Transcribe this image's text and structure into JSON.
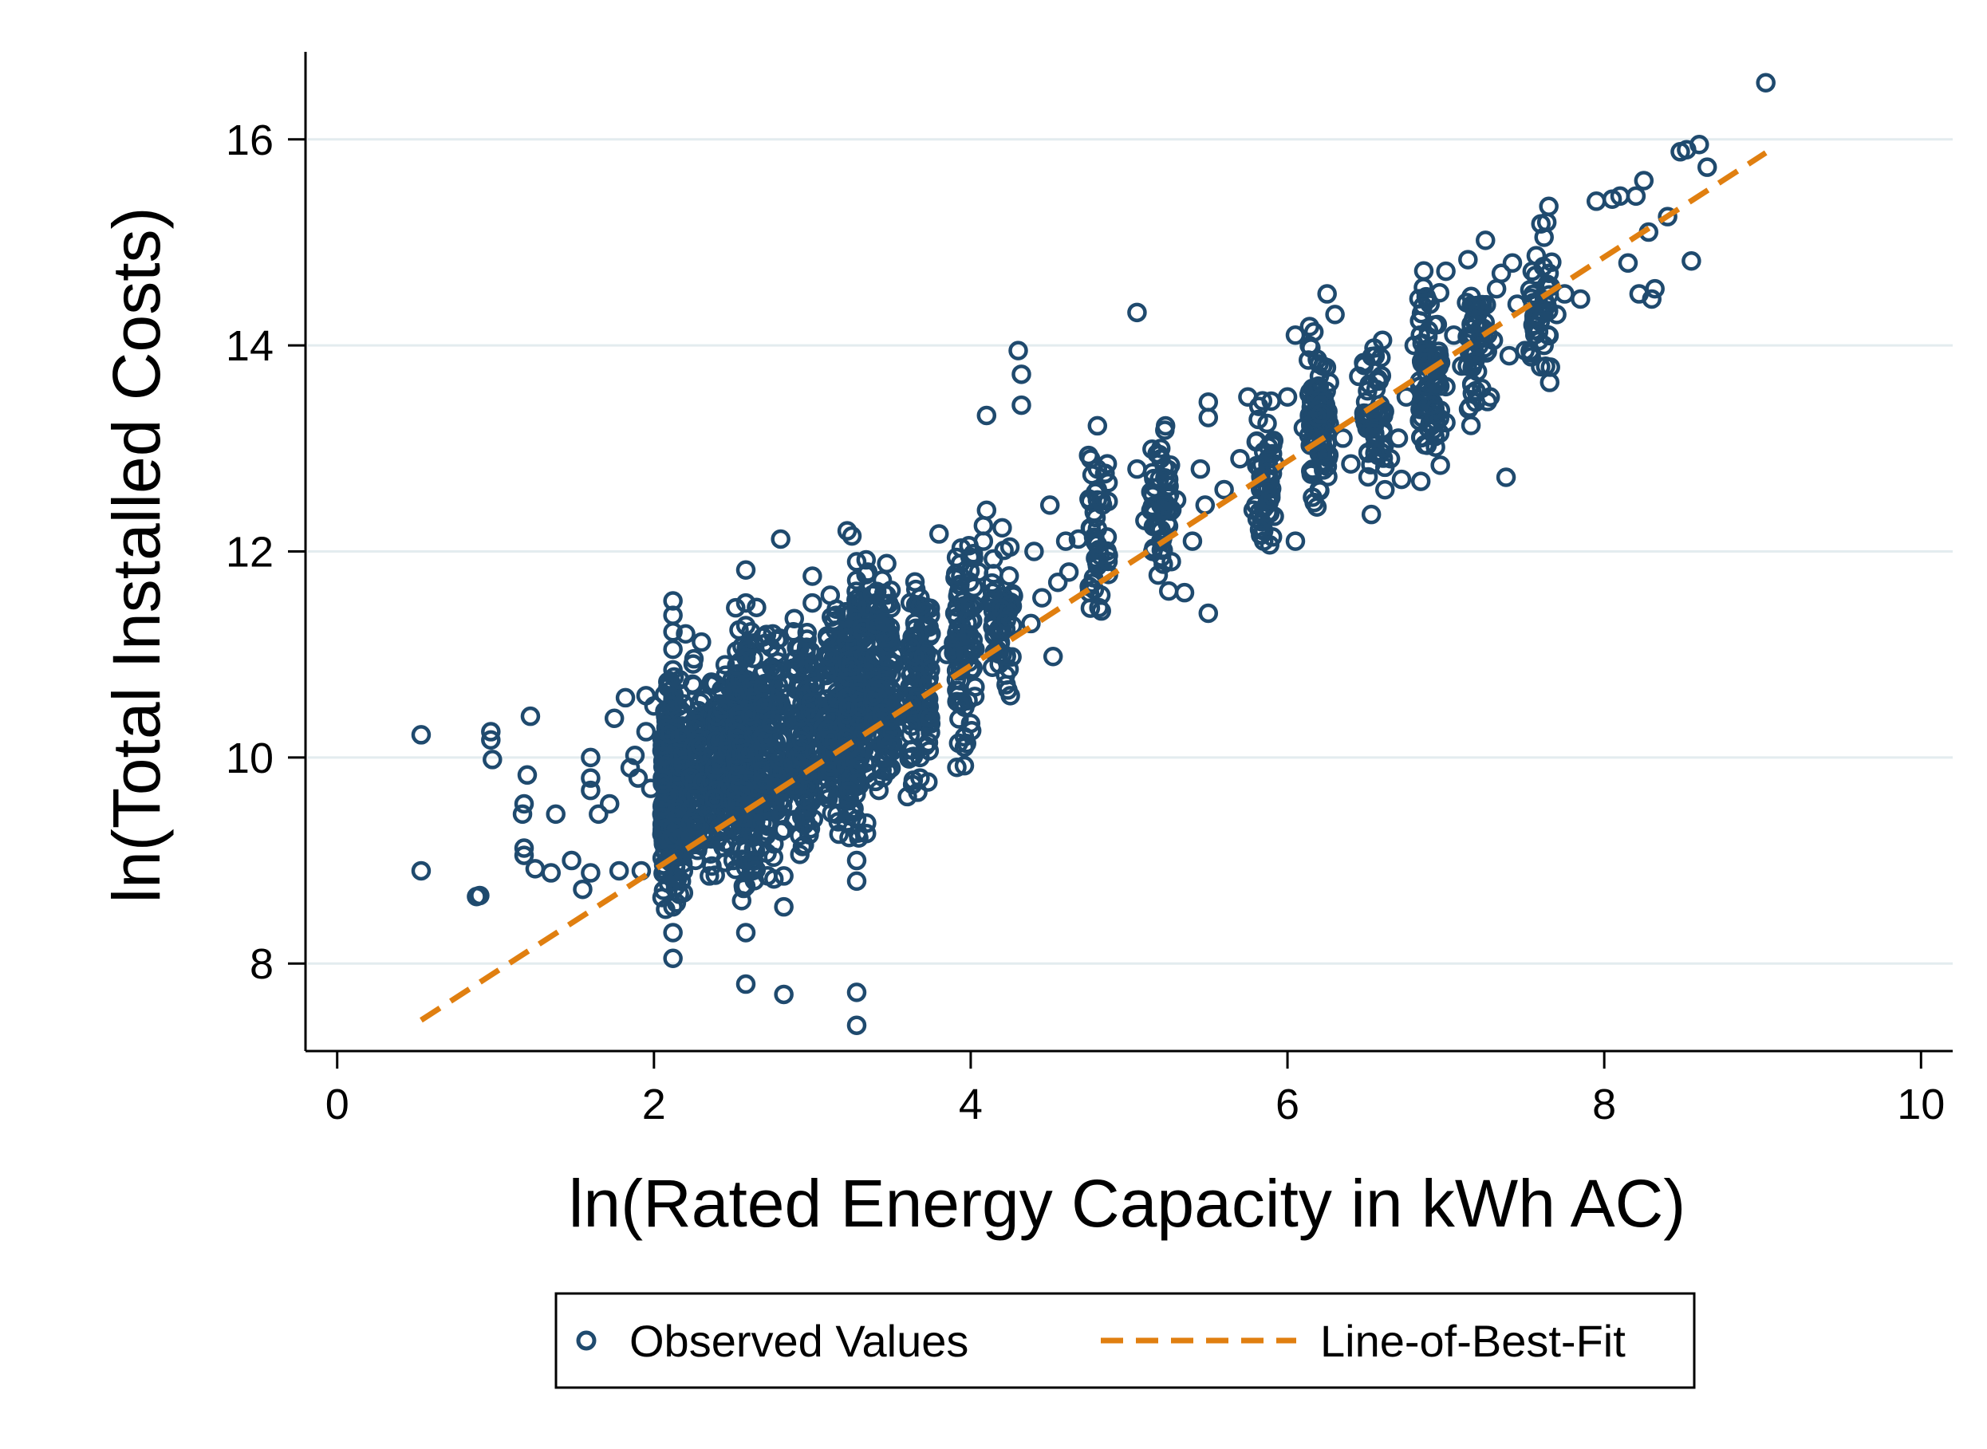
{
  "chart_data": {
    "type": "scatter",
    "title": "",
    "xlabel": "ln(Rated Energy Capacity in kWh AC)",
    "ylabel": "ln(Total Installed Costs)",
    "xlim": [
      -0.2,
      10.2
    ],
    "ylim": [
      7.15,
      16.85
    ],
    "xticks": [
      "0",
      "2",
      "4",
      "6",
      "8",
      "10"
    ],
    "yticks": [
      "8",
      "10",
      "12",
      "14",
      "16"
    ],
    "grid": "horizontal",
    "legend_position": "bottom-center",
    "colors": {
      "points": "#1f4a6e",
      "fit_line": "#e07f10",
      "grid": "#e3ecef",
      "axis": "#000000"
    },
    "series": [
      {
        "name": "Observed Values",
        "kind": "scatter",
        "marker": "hollow-circle",
        "points": [
          [
            0.53,
            10.22
          ],
          [
            0.53,
            8.9
          ],
          [
            0.88,
            8.65
          ],
          [
            0.9,
            8.66
          ],
          [
            0.97,
            10.25
          ],
          [
            0.97,
            10.17
          ],
          [
            0.98,
            9.98
          ],
          [
            1.22,
            10.4
          ],
          [
            1.2,
            9.83
          ],
          [
            1.18,
            9.55
          ],
          [
            1.17,
            9.45
          ],
          [
            1.18,
            9.12
          ],
          [
            1.18,
            9.05
          ],
          [
            1.25,
            8.92
          ],
          [
            1.35,
            8.88
          ],
          [
            1.38,
            9.45
          ],
          [
            1.48,
            9.0
          ],
          [
            1.55,
            8.72
          ],
          [
            1.6,
            8.88
          ],
          [
            1.6,
            9.68
          ],
          [
            1.6,
            9.8
          ],
          [
            1.6,
            10.0
          ],
          [
            1.65,
            9.45
          ],
          [
            1.72,
            9.55
          ],
          [
            1.75,
            10.38
          ],
          [
            1.78,
            8.9
          ],
          [
            1.82,
            10.58
          ],
          [
            1.85,
            9.9
          ],
          [
            1.88,
            10.02
          ],
          [
            1.9,
            9.8
          ],
          [
            1.95,
            10.6
          ],
          [
            1.95,
            10.25
          ],
          [
            1.92,
            8.9
          ],
          [
            1.98,
            9.7
          ],
          [
            2.05,
            9.45
          ],
          [
            2.0,
            10.5
          ],
          [
            2.12,
            11.52
          ],
          [
            2.12,
            11.38
          ],
          [
            2.12,
            11.22
          ],
          [
            2.12,
            11.05
          ],
          [
            2.12,
            10.85
          ],
          [
            2.12,
            10.6
          ],
          [
            2.12,
            10.3
          ],
          [
            2.12,
            10.0
          ],
          [
            2.12,
            9.7
          ],
          [
            2.12,
            9.4
          ],
          [
            2.12,
            9.1
          ],
          [
            2.12,
            8.82
          ],
          [
            2.12,
            8.55
          ],
          [
            2.12,
            8.3
          ],
          [
            2.12,
            8.05
          ],
          [
            2.2,
            11.2
          ],
          [
            2.2,
            9.5
          ],
          [
            2.25,
            10.7
          ],
          [
            2.3,
            9.9
          ],
          [
            2.3,
            11.12
          ],
          [
            2.35,
            10.4
          ],
          [
            2.35,
            8.85
          ],
          [
            2.4,
            10.2
          ],
          [
            2.4,
            9.2
          ],
          [
            2.45,
            10.9
          ],
          [
            2.5,
            9.8
          ],
          [
            2.5,
            10.6
          ],
          [
            2.5,
            9.0
          ],
          [
            2.58,
            11.82
          ],
          [
            2.58,
            11.5
          ],
          [
            2.58,
            11.28
          ],
          [
            2.58,
            11.0
          ],
          [
            2.58,
            10.6
          ],
          [
            2.58,
            10.2
          ],
          [
            2.58,
            9.8
          ],
          [
            2.58,
            9.4
          ],
          [
            2.58,
            9.0
          ],
          [
            2.58,
            8.75
          ],
          [
            2.58,
            8.3
          ],
          [
            2.58,
            7.8
          ],
          [
            2.65,
            10.1
          ],
          [
            2.7,
            9.6
          ],
          [
            2.75,
            10.7
          ],
          [
            2.75,
            11.2
          ],
          [
            2.8,
            12.12
          ],
          [
            2.82,
            9.3
          ],
          [
            2.82,
            8.85
          ],
          [
            2.82,
            8.55
          ],
          [
            2.82,
            7.7
          ],
          [
            2.88,
            11.22
          ],
          [
            2.9,
            10.4
          ],
          [
            2.95,
            9.9
          ],
          [
            2.98,
            9.25
          ],
          [
            3.0,
            11.76
          ],
          [
            3.0,
            11.5
          ],
          [
            3.05,
            10.5
          ],
          [
            3.1,
            9.6
          ],
          [
            3.15,
            11.38
          ],
          [
            3.15,
            10.9
          ],
          [
            3.2,
            10.1
          ],
          [
            3.22,
            12.2
          ],
          [
            3.25,
            12.15
          ],
          [
            3.28,
            11.9
          ],
          [
            3.28,
            11.72
          ],
          [
            3.28,
            11.4
          ],
          [
            3.28,
            11.0
          ],
          [
            3.28,
            10.6
          ],
          [
            3.28,
            10.2
          ],
          [
            3.28,
            9.8
          ],
          [
            3.28,
            9.4
          ],
          [
            3.28,
            9.0
          ],
          [
            3.28,
            8.8
          ],
          [
            3.28,
            7.72
          ],
          [
            3.28,
            7.4
          ],
          [
            3.35,
            11.8
          ],
          [
            3.4,
            11.5
          ],
          [
            3.45,
            11.2
          ],
          [
            3.5,
            10.8
          ],
          [
            3.55,
            10.4
          ],
          [
            3.6,
            9.62
          ],
          [
            3.62,
            10.0
          ],
          [
            3.68,
            11.55
          ],
          [
            3.68,
            11.2
          ],
          [
            3.68,
            10.8
          ],
          [
            3.68,
            10.4
          ],
          [
            3.68,
            10.0
          ],
          [
            3.68,
            9.8
          ],
          [
            3.75,
            11.2
          ],
          [
            3.8,
            12.17
          ],
          [
            3.85,
            11.0
          ],
          [
            3.9,
            11.4
          ],
          [
            3.92,
            10.6
          ],
          [
            3.96,
            10.2
          ],
          [
            3.96,
            9.92
          ],
          [
            3.96,
            10.1
          ],
          [
            4.02,
            11.65
          ],
          [
            4.05,
            11.8
          ],
          [
            4.08,
            12.1
          ],
          [
            4.08,
            12.25
          ],
          [
            4.1,
            12.4
          ],
          [
            4.1,
            13.32
          ],
          [
            4.12,
            11.5
          ],
          [
            4.15,
            11.2
          ],
          [
            4.2,
            11.0
          ],
          [
            4.22,
            10.8
          ],
          [
            4.25,
            10.6
          ],
          [
            4.3,
            13.95
          ],
          [
            4.32,
            13.72
          ],
          [
            4.32,
            13.42
          ],
          [
            4.38,
            11.3
          ],
          [
            4.4,
            12.0
          ],
          [
            4.45,
            11.55
          ],
          [
            4.5,
            12.45
          ],
          [
            4.52,
            10.98
          ],
          [
            4.55,
            11.7
          ],
          [
            4.6,
            12.1
          ],
          [
            4.62,
            11.8
          ],
          [
            4.68,
            12.12
          ],
          [
            4.75,
            11.6
          ],
          [
            4.78,
            12.38
          ],
          [
            4.8,
            12.6
          ],
          [
            4.8,
            12.5
          ],
          [
            4.8,
            12.22
          ],
          [
            4.8,
            13.22
          ],
          [
            4.8,
            12.8
          ],
          [
            4.8,
            11.92
          ],
          [
            5.05,
            14.32
          ],
          [
            5.05,
            12.8
          ],
          [
            5.1,
            12.3
          ],
          [
            5.15,
            12.0
          ],
          [
            5.2,
            13.0
          ],
          [
            5.2,
            12.9
          ],
          [
            5.2,
            12.45
          ],
          [
            5.2,
            12.2
          ],
          [
            5.2,
            12.1
          ],
          [
            5.25,
            12.7
          ],
          [
            5.3,
            12.5
          ],
          [
            5.35,
            11.6
          ],
          [
            5.4,
            12.1
          ],
          [
            5.45,
            12.8
          ],
          [
            5.48,
            12.45
          ],
          [
            5.5,
            11.4
          ],
          [
            5.5,
            13.3
          ],
          [
            5.5,
            13.45
          ],
          [
            5.6,
            12.6
          ],
          [
            5.7,
            12.9
          ],
          [
            5.75,
            13.5
          ],
          [
            5.8,
            12.45
          ],
          [
            5.85,
            12.2
          ],
          [
            5.85,
            12.1
          ],
          [
            5.85,
            12.6
          ],
          [
            5.9,
            13.05
          ],
          [
            5.92,
            12.85
          ],
          [
            6.0,
            13.5
          ],
          [
            6.05,
            12.1
          ],
          [
            6.05,
            14.1
          ],
          [
            6.1,
            13.2
          ],
          [
            6.15,
            13.4
          ],
          [
            6.15,
            12.75
          ],
          [
            6.2,
            13.82
          ],
          [
            6.2,
            13.6
          ],
          [
            6.2,
            13.2
          ],
          [
            6.2,
            12.95
          ],
          [
            6.2,
            12.6
          ],
          [
            6.25,
            14.5
          ],
          [
            6.3,
            14.3
          ],
          [
            6.35,
            13.1
          ],
          [
            6.4,
            12.85
          ],
          [
            6.45,
            13.7
          ],
          [
            6.5,
            13.3
          ],
          [
            6.6,
            14.05
          ],
          [
            6.65,
            12.9
          ],
          [
            6.7,
            13.1
          ],
          [
            6.72,
            12.7
          ],
          [
            6.75,
            13.5
          ],
          [
            6.8,
            14.0
          ],
          [
            6.85,
            13.3
          ],
          [
            6.9,
            14.4
          ],
          [
            6.95,
            13.8
          ],
          [
            7.0,
            13.6
          ],
          [
            7.0,
            14.72
          ],
          [
            7.0,
            13.25
          ],
          [
            7.05,
            14.1
          ],
          [
            7.1,
            13.8
          ],
          [
            7.15,
            13.4
          ],
          [
            7.2,
            14.3
          ],
          [
            7.25,
            15.02
          ],
          [
            7.28,
            13.5
          ],
          [
            7.3,
            14.05
          ],
          [
            7.32,
            14.55
          ],
          [
            7.35,
            14.7
          ],
          [
            7.38,
            12.72
          ],
          [
            7.4,
            13.9
          ],
          [
            7.42,
            14.8
          ],
          [
            7.45,
            14.4
          ],
          [
            7.5,
            13.95
          ],
          [
            7.55,
            14.2
          ],
          [
            7.6,
            15.18
          ],
          [
            7.62,
            15.05
          ],
          [
            7.62,
            14.0
          ],
          [
            7.65,
            15.35
          ],
          [
            7.7,
            14.3
          ],
          [
            7.75,
            14.5
          ],
          [
            7.85,
            14.45
          ],
          [
            7.95,
            15.4
          ],
          [
            8.05,
            15.42
          ],
          [
            8.1,
            15.45
          ],
          [
            8.15,
            14.8
          ],
          [
            8.2,
            15.45
          ],
          [
            8.22,
            14.5
          ],
          [
            8.25,
            15.6
          ],
          [
            8.28,
            15.1
          ],
          [
            8.3,
            14.45
          ],
          [
            8.32,
            14.55
          ],
          [
            8.4,
            15.25
          ],
          [
            8.48,
            15.88
          ],
          [
            8.52,
            15.9
          ],
          [
            8.55,
            14.82
          ],
          [
            8.6,
            15.95
          ],
          [
            8.65,
            15.73
          ],
          [
            9.02,
            16.55
          ]
        ]
      },
      {
        "name": "Line-of-Best-Fit",
        "kind": "line",
        "style": "dashed",
        "x": [
          0.53,
          9.02
        ],
        "y": [
          7.45,
          15.87
        ]
      }
    ]
  }
}
